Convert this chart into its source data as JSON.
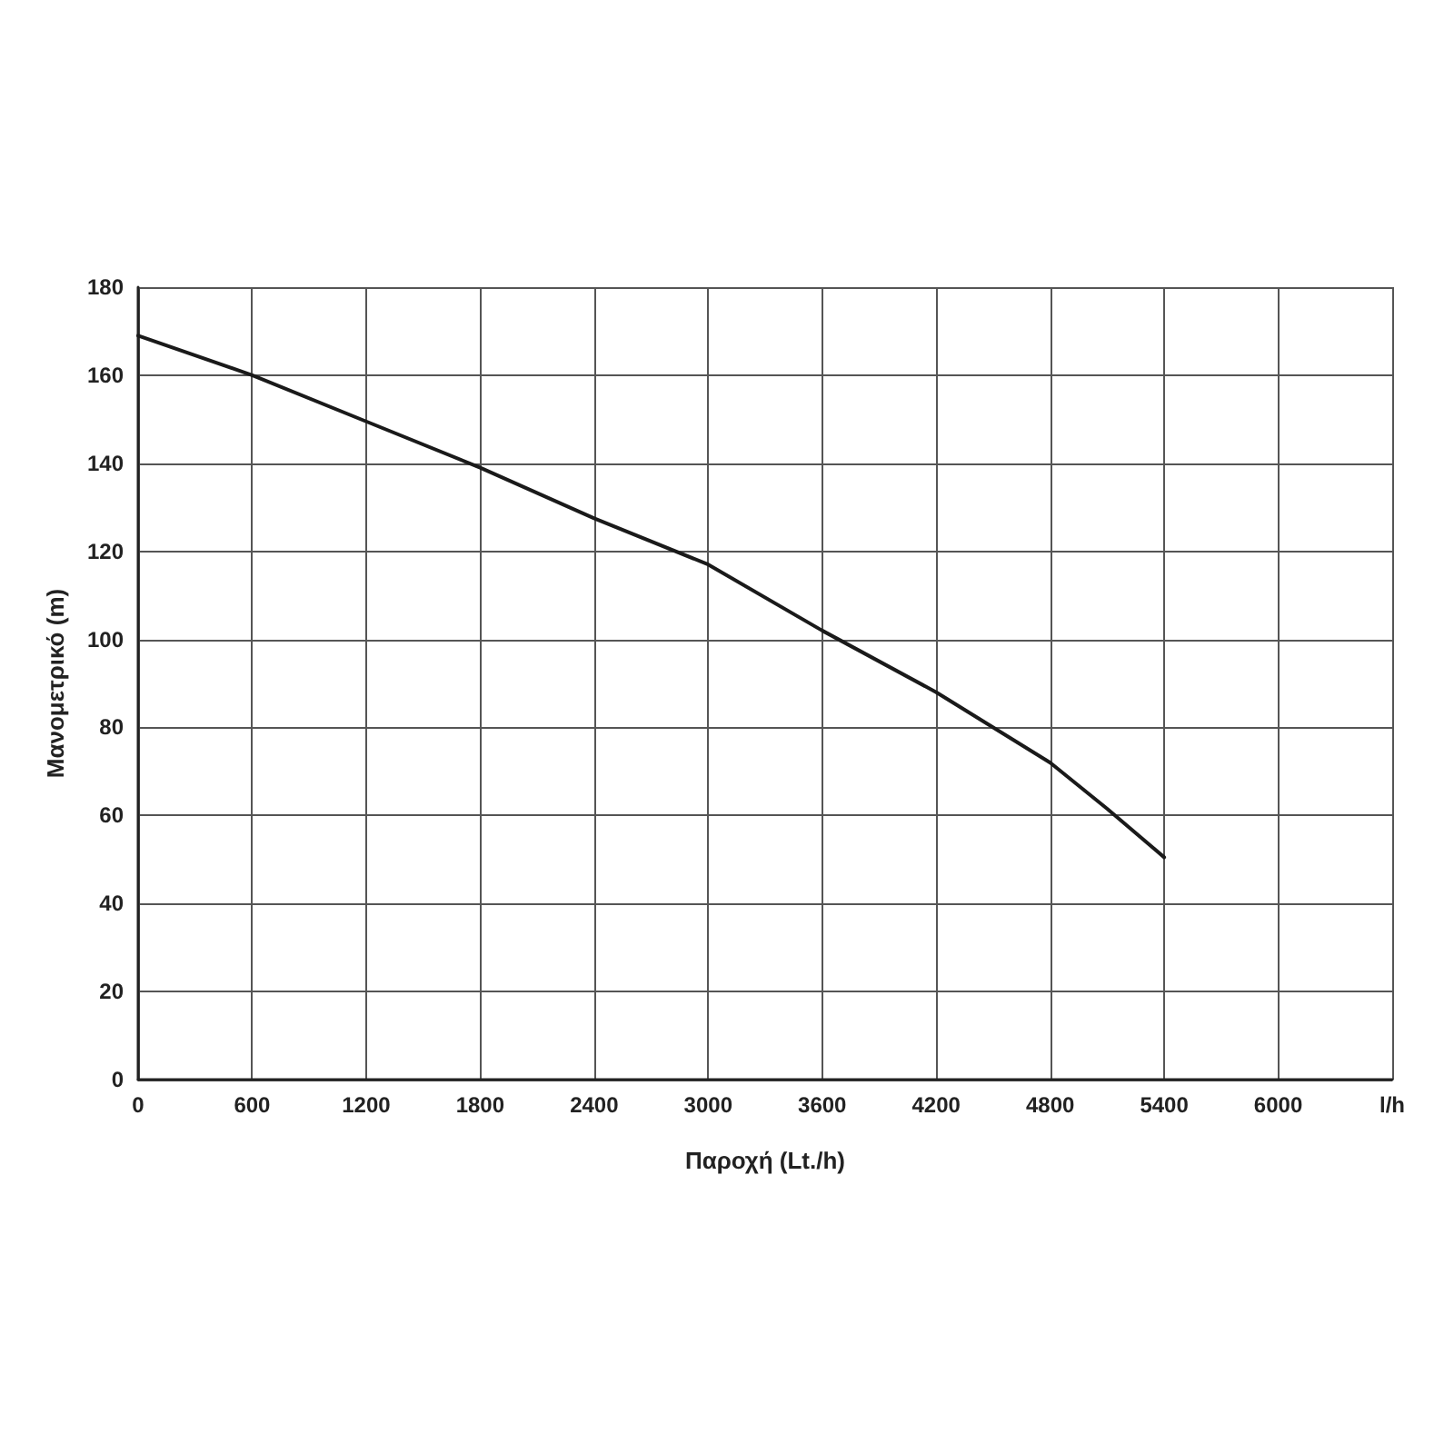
{
  "chart_data": {
    "type": "line",
    "xlabel": "Παροχή (Lt./h)",
    "ylabel": "Μανομετρικό (m)",
    "x": [
      0,
      600,
      1200,
      1800,
      2400,
      3000,
      3600,
      4200,
      4500,
      4800,
      5100,
      5400
    ],
    "series": [
      {
        "color": "#1a1a1a",
        "values": [
          169,
          160,
          149.5,
          139,
          127.5,
          117,
          102,
          88,
          80,
          72,
          61.5,
          50.5
        ]
      }
    ],
    "xlim": [
      0,
      6600
    ],
    "xticks": [
      0,
      600,
      1200,
      1800,
      2400,
      3000,
      3600,
      4200,
      4800,
      5400,
      6000,
      {
        "value": 6600,
        "label": "l/h"
      }
    ],
    "ylim": [
      0,
      180
    ],
    "yticks": [
      0,
      20,
      40,
      60,
      80,
      100,
      120,
      140,
      160,
      180
    ],
    "grid": true,
    "marker": "none",
    "line_style": "solid"
  }
}
